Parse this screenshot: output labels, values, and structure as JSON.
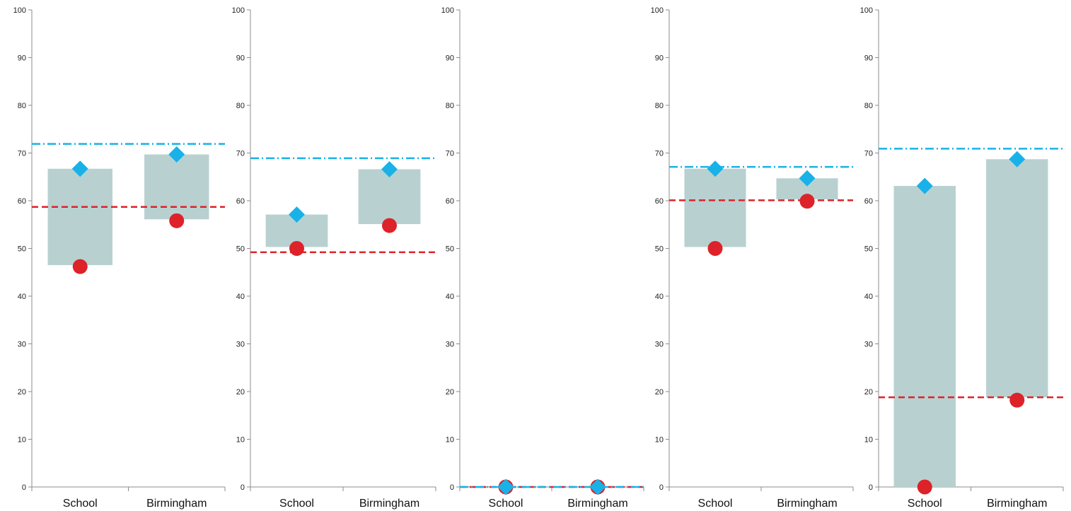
{
  "chart_data": [
    {
      "type": "range-bar",
      "categories": [
        "School",
        "Birmingham"
      ],
      "yticks": [
        "0",
        "10",
        "20",
        "30",
        "40",
        "50",
        "60",
        "70",
        "80",
        "90",
        "100"
      ],
      "ylim": [
        0,
        100
      ],
      "ranges": [
        [
          46.5,
          66.7
        ],
        [
          56.1,
          69.7
        ]
      ],
      "high_markers": [
        66.7,
        69.7
      ],
      "low_markers": [
        46.2,
        55.8
      ],
      "ref_high": 71.9,
      "ref_low": 58.7
    },
    {
      "type": "range-bar",
      "categories": [
        "School",
        "Birmingham"
      ],
      "yticks": [
        "0",
        "10",
        "20",
        "30",
        "40",
        "50",
        "60",
        "70",
        "80",
        "90",
        "100"
      ],
      "ylim": [
        0,
        100
      ],
      "ranges": [
        [
          50.3,
          57.1
        ],
        [
          55.1,
          66.6
        ]
      ],
      "high_markers": [
        57.1,
        66.6
      ],
      "low_markers": [
        50.0,
        54.8
      ],
      "ref_high": 68.9,
      "ref_low": 49.2
    },
    {
      "type": "range-bar",
      "categories": [
        "School",
        "Birmingham"
      ],
      "yticks": [
        "0",
        "10",
        "20",
        "30",
        "40",
        "50",
        "60",
        "70",
        "80",
        "90",
        "100"
      ],
      "ylim": [
        0,
        100
      ],
      "ranges": [
        [
          0,
          0
        ],
        [
          0,
          0
        ]
      ],
      "high_markers": [
        0,
        0
      ],
      "low_markers": [
        0,
        0
      ],
      "ref_high": 0,
      "ref_low": 0
    },
    {
      "type": "range-bar",
      "categories": [
        "School",
        "Birmingham"
      ],
      "yticks": [
        "0",
        "10",
        "20",
        "30",
        "40",
        "50",
        "60",
        "70",
        "80",
        "90",
        "100"
      ],
      "ylim": [
        0,
        100
      ],
      "ranges": [
        [
          50.3,
          66.7
        ],
        [
          60.3,
          64.7
        ]
      ],
      "high_markers": [
        66.7,
        64.7
      ],
      "low_markers": [
        50.0,
        59.9
      ],
      "ref_high": 67.1,
      "ref_low": 60.1
    },
    {
      "type": "range-bar",
      "categories": [
        "School",
        "Birmingham"
      ],
      "yticks": [
        "0",
        "10",
        "20",
        "30",
        "40",
        "50",
        "60",
        "70",
        "80",
        "90",
        "100"
      ],
      "ylim": [
        0,
        100
      ],
      "ranges": [
        [
          0,
          63.1
        ],
        [
          18.8,
          68.7
        ]
      ],
      "high_markers": [
        63.1,
        68.7
      ],
      "low_markers": [
        0,
        18.2
      ],
      "ref_high": 70.9,
      "ref_low": 18.8
    }
  ],
  "colors": {
    "bar": "#b8d1d0",
    "high_marker": "#18b2e8",
    "low_marker": "#dd2229",
    "ref_high_line": "#18b2e8",
    "ref_low_line": "#dd2229",
    "axis": "#8c8c8c"
  }
}
